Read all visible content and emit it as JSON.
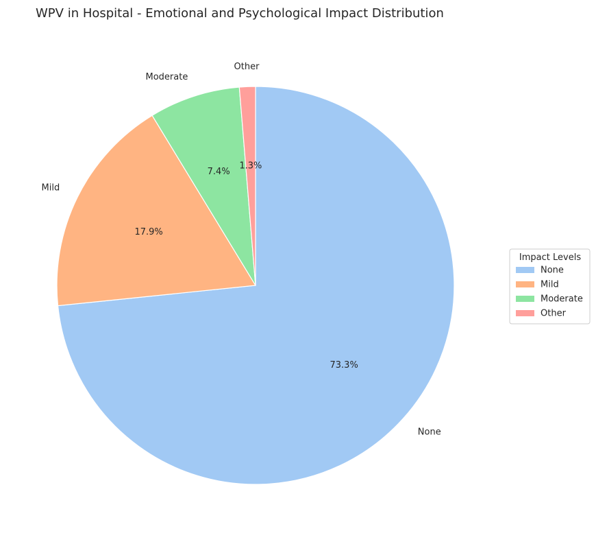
{
  "chart_data": {
    "type": "pie",
    "title": "WPV in Hospital - Emotional and Psychological Impact Distribution",
    "slices": [
      {
        "label": "None",
        "value": 73.3,
        "pct_label": "73.3%",
        "color": "#a1c9f4"
      },
      {
        "label": "Mild",
        "value": 17.9,
        "pct_label": "17.9%",
        "color": "#ffb482"
      },
      {
        "label": "Moderate",
        "value": 7.4,
        "pct_label": "7.4%",
        "color": "#8de5a1"
      },
      {
        "label": "Other",
        "value": 1.3,
        "pct_label": "1.3%",
        "color": "#ff9f9b"
      }
    ],
    "start_angle_deg": 90,
    "direction": "clockwise",
    "legend": {
      "title": "Impact Levels",
      "placement": "center-right",
      "entries": [
        "None",
        "Mild",
        "Moderate",
        "Other"
      ]
    }
  }
}
